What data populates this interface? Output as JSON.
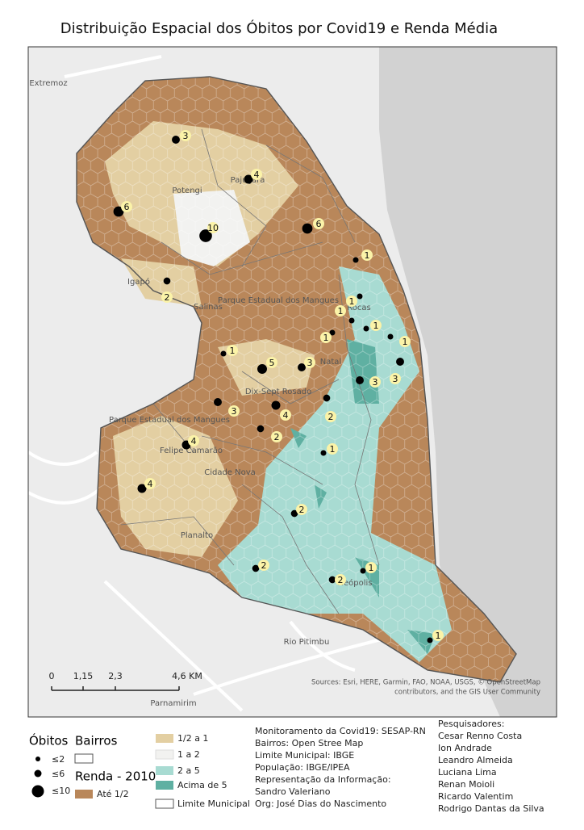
{
  "title": "Distribuição Espacial dos Óbitos por Covid19 e Renda Média",
  "map_labels": [
    "Extremoz",
    "Potengi",
    "Pajuçara",
    "Igapó",
    "Salinas",
    "Parque Estadual dos Mangues",
    "Rocas",
    "Natal",
    "Dix-Sept Rosado",
    "Parque Estadual dos Mangues",
    "Felipe Camarão",
    "Cidade Nova",
    "Planalto",
    "Neópolis",
    "Rio Pitimbu",
    "Parnamirim"
  ],
  "points": [
    {
      "value": 3
    },
    {
      "value": 4
    },
    {
      "value": 6
    },
    {
      "value": 10
    },
    {
      "value": 6
    },
    {
      "value": 1
    },
    {
      "value": 2
    },
    {
      "value": 1
    },
    {
      "value": 1
    },
    {
      "value": 1
    },
    {
      "value": 1
    },
    {
      "value": 1
    },
    {
      "value": 3
    },
    {
      "value": 3
    },
    {
      "value": 1
    },
    {
      "value": 5
    },
    {
      "value": 3
    },
    {
      "value": 4
    },
    {
      "value": 2
    },
    {
      "value": 3
    },
    {
      "value": 2
    },
    {
      "value": 4
    },
    {
      "value": 1
    },
    {
      "value": 4
    },
    {
      "value": 2
    },
    {
      "value": 2
    },
    {
      "value": 1
    },
    {
      "value": 1
    },
    {
      "value": 2
    }
  ],
  "scale_bar": {
    "ticks": [
      "0",
      "1,15",
      "2,3",
      "4,6 KM"
    ]
  },
  "attribution": [
    "Sources: Esri, HERE, Garmin, FAO, NOAA, USGS, © OpenStreetMap",
    "contributors, and the GIS User Community"
  ],
  "legend": {
    "deaths_title": "Óbitos",
    "deaths": [
      "≤2",
      "≤6",
      "≤10"
    ],
    "bairros": "Bairros",
    "income_title": "Renda - 2010",
    "income": [
      {
        "label": "Até 1/2",
        "color": "#b9875a"
      },
      {
        "label": "1/2 a 1",
        "color": "#e3cfa2"
      },
      {
        "label": "1 a 2",
        "color": "#f2f2f0"
      },
      {
        "label": "2 a 5",
        "color": "#a8dbd2"
      },
      {
        "label": "Acima de 5",
        "color": "#5fb0a2"
      }
    ],
    "limit": "Limite Municipal"
  },
  "sources": [
    "Monitoramento da Covid19: SESAP-RN",
    "Bairros: Open Stree Map",
    "Limite Municipal: IBGE",
    "População: IBGE/IPEA",
    "Representação da Informação:",
    "Sandro Valeriano",
    "Org: José Dias do Nascimento"
  ],
  "researchers": [
    "Pesquisadores:",
    "Cesar Renno Costa",
    "Ion Andrade",
    "Leandro Almeida",
    "Luciana Lima",
    "Renan Moioli",
    "Ricardo Valentim",
    "Rodrigo Dantas da Silva"
  ]
}
